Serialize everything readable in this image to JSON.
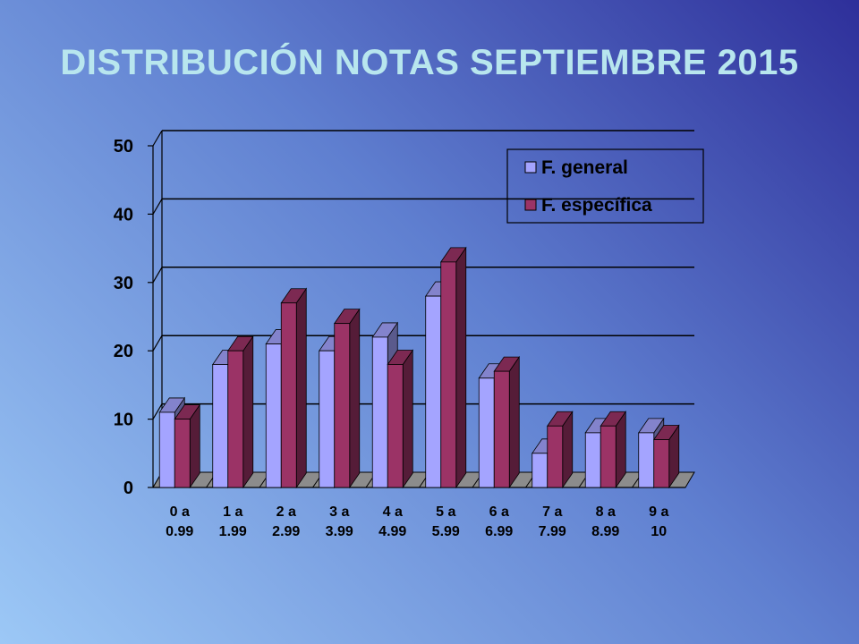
{
  "slide": {
    "title": "DISTRIBUCIÓN NOTAS SEPTIEMBRE 2015"
  },
  "chart_data": {
    "type": "bar",
    "title": "DISTRIBUCIÓN NOTAS SEPTIEMBRE 2015",
    "categories": [
      [
        "0 a",
        "0.99"
      ],
      [
        "1 a",
        "1.99"
      ],
      [
        "2 a",
        "2.99"
      ],
      [
        "3 a",
        "3.99"
      ],
      [
        "4 a",
        "4.99"
      ],
      [
        "5 a",
        "5.99"
      ],
      [
        "6 a",
        "6.99"
      ],
      [
        "7 a",
        "7.99"
      ],
      [
        "8 a",
        "8.99"
      ],
      [
        "9 a",
        "10"
      ]
    ],
    "series": [
      {
        "name": "F. general",
        "values": [
          11,
          18,
          21,
          20,
          22,
          28,
          16,
          5,
          8,
          8
        ],
        "color": "#a4a4ff"
      },
      {
        "name": "F. específica",
        "values": [
          10,
          20,
          27,
          24,
          18,
          33,
          17,
          9,
          9,
          7
        ],
        "color": "#9b3366"
      }
    ],
    "yticks": [
      0,
      10,
      20,
      30,
      40,
      50
    ],
    "ylim": [
      0,
      50
    ],
    "grid": true,
    "legend_position": "top-right"
  }
}
